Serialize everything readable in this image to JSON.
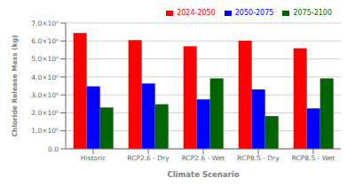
{
  "chart_data": {
    "type": "bar",
    "categories": [
      "Historic",
      "RCP2.6 - Dry",
      "RCP2.6 - Wet",
      "RCP8.5 - Dry",
      "RCP8.5 - Wet"
    ],
    "series": [
      {
        "name": "2024-2050",
        "color": "#FF0000",
        "values": [
          6450000,
          6050000,
          5700000,
          6020000,
          5600000
        ]
      },
      {
        "name": "2050-2075",
        "color": "#0000FF",
        "values": [
          3480000,
          3630000,
          2750000,
          3300000,
          2250000
        ]
      },
      {
        "name": "2075-2100",
        "color": "#006400",
        "values": [
          2300000,
          2480000,
          3920000,
          1820000,
          3920000
        ]
      }
    ],
    "xlabel": "Climate Scenario",
    "ylabel": "Chloride Release Mass (kg)",
    "ylim": [
      0,
      7000000
    ],
    "yticks": [
      {
        "value": 0,
        "label": "0.0"
      },
      {
        "value": 1000000,
        "label": "1.0×10⁶"
      },
      {
        "value": 2000000,
        "label": "2.0×10⁶"
      },
      {
        "value": 3000000,
        "label": "3.0×10⁶"
      },
      {
        "value": 4000000,
        "label": "4.0×10⁶"
      },
      {
        "value": 5000000,
        "label": "5.0×10⁶"
      },
      {
        "value": 6000000,
        "label": "6.0×10⁶"
      },
      {
        "value": 7000000,
        "label": "7.0×10⁶"
      }
    ],
    "grid": true,
    "legend": "upper right"
  }
}
